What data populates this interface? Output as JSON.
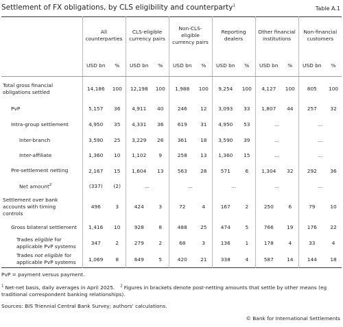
{
  "header": {
    "title": "Settlement of FX obligations, by CLS eligibility and counterparty",
    "title_note": "1",
    "table_id": "Table A.1"
  },
  "table": {
    "groups": [
      "All counterparties",
      "CLS-eligible currency pairs",
      "Non-CLS-eligible currency pairs",
      "Reporting dealers",
      "Other financial institutions",
      "Non-financial customers"
    ],
    "units": [
      "USD bn",
      "%"
    ],
    "rows": [
      {
        "label": "Total gross financial obligations settled",
        "cells": [
          [
            "14,186",
            "100"
          ],
          [
            "12,198",
            "100"
          ],
          [
            "1,988",
            "100"
          ],
          [
            "9,254",
            "100"
          ],
          [
            "4,127",
            "100"
          ],
          [
            "805",
            "100"
          ]
        ]
      },
      {
        "label": "PvP",
        "cells": [
          [
            "5,157",
            "36"
          ],
          [
            "4,911",
            "40"
          ],
          [
            "246",
            "12"
          ],
          [
            "3,093",
            "33"
          ],
          [
            "1,807",
            "44"
          ],
          [
            "257",
            "32"
          ]
        ]
      },
      {
        "label": "Intra-group settlement",
        "cells": [
          [
            "4,950",
            "35"
          ],
          [
            "4,331",
            "36"
          ],
          [
            "619",
            "31"
          ],
          [
            "4,950",
            "53"
          ],
          "...",
          "..."
        ]
      },
      {
        "label": "Inter-branch",
        "cells": [
          [
            "3,590",
            "25"
          ],
          [
            "3,229",
            "26"
          ],
          [
            "361",
            "18"
          ],
          [
            "3,590",
            "39"
          ],
          "...",
          "..."
        ]
      },
      {
        "label": "Inter-affiliate",
        "cells": [
          [
            "1,360",
            "10"
          ],
          [
            "1,102",
            "9"
          ],
          [
            "258",
            "13"
          ],
          [
            "1,360",
            "15"
          ],
          "...",
          "..."
        ]
      },
      {
        "label": "Pre-settlement netting",
        "cells": [
          [
            "2,167",
            "15"
          ],
          [
            "1,604",
            "13"
          ],
          [
            "563",
            "28"
          ],
          [
            "571",
            "6"
          ],
          [
            "1,304",
            "32"
          ],
          [
            "292",
            "36"
          ]
        ]
      },
      {
        "label": "Net amount",
        "note": "2",
        "cells": [
          [
            "(337)",
            "(2)"
          ],
          "...",
          "...",
          "...",
          "...",
          "..."
        ]
      },
      {
        "label": "Settlement over bank accounts with timing controls",
        "cells": [
          [
            "496",
            "3"
          ],
          [
            "424",
            "3"
          ],
          [
            "72",
            "4"
          ],
          [
            "167",
            "2"
          ],
          [
            "250",
            "6"
          ],
          [
            "79",
            "10"
          ]
        ]
      },
      {
        "label": "Gross bilateral settlement",
        "cells": [
          [
            "1,416",
            "10"
          ],
          [
            "928",
            "8"
          ],
          [
            "488",
            "25"
          ],
          [
            "474",
            "5"
          ],
          [
            "766",
            "19"
          ],
          [
            "176",
            "22"
          ]
        ]
      },
      {
        "label": [
          "Trades ",
          "eligible",
          " for applicable PvP systems"
        ],
        "cells": [
          [
            "347",
            "2"
          ],
          [
            "279",
            "2"
          ],
          [
            "68",
            "3"
          ],
          [
            "136",
            "1"
          ],
          [
            "178",
            "4"
          ],
          [
            "33",
            "4"
          ]
        ]
      },
      {
        "label": [
          "Trades ",
          "not eligible",
          " for applicable PvP systems"
        ],
        "cells": [
          [
            "1,069",
            "8"
          ],
          [
            "649",
            "5"
          ],
          [
            "420",
            "21"
          ],
          [
            "338",
            "4"
          ],
          [
            "587",
            "14"
          ],
          [
            "144",
            "18"
          ]
        ]
      }
    ]
  },
  "footer": {
    "abbreviation": "PvP = payment versus payment.",
    "notes": [
      {
        "marker": "1",
        "text": "Net-net basis, daily averages in April 2025."
      },
      {
        "marker": "2",
        "text": "Figures in brackets denote post-netting amounts that settle by other means (eg traditional correspondent banking relationships)."
      }
    ],
    "sources": "Sources: BIS Triennial Central Bank Survey; authors' calculations.",
    "copyright": "© Bank for International Settlements"
  }
}
